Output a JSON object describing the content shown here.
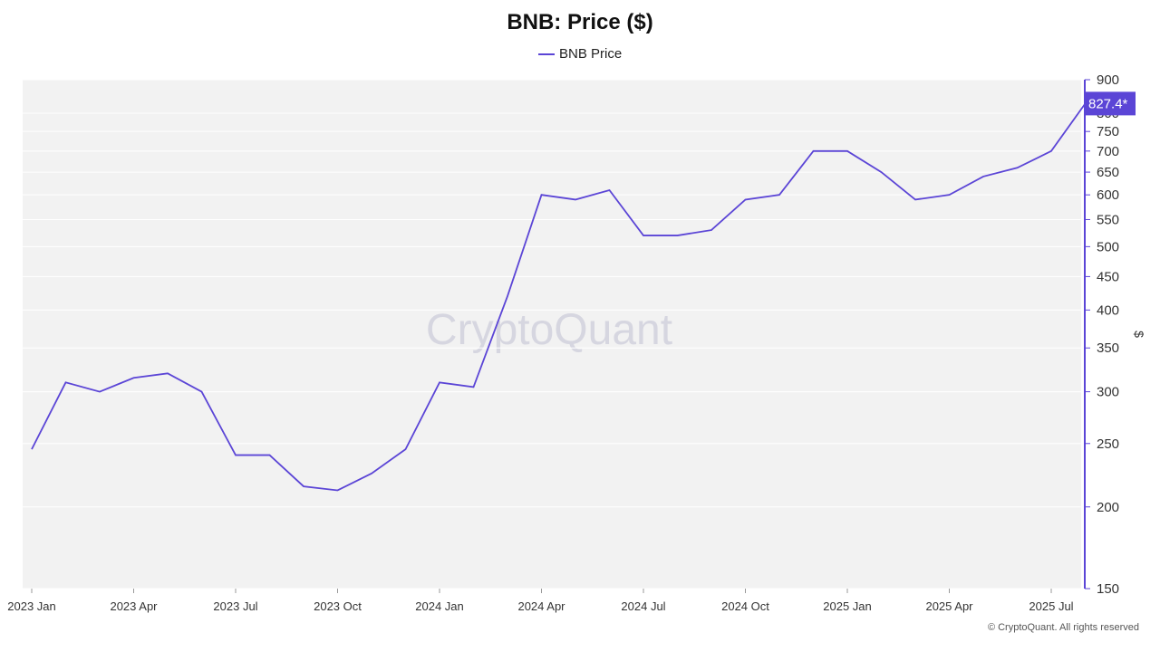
{
  "chart_data": {
    "type": "line",
    "title": "BNB: Price ($)",
    "y_label": "$",
    "watermark": "CryptoQuant",
    "footer": "© CryptoQuant. All rights reserved",
    "y_scale": "log",
    "y_axis_side": "right",
    "grid": true,
    "x": [
      "2023-01",
      "2023-02",
      "2023-03",
      "2023-04",
      "2023-05",
      "2023-06",
      "2023-07",
      "2023-08",
      "2023-09",
      "2023-10",
      "2023-11",
      "2023-12",
      "2024-01",
      "2024-02",
      "2024-03",
      "2024-04",
      "2024-05",
      "2024-06",
      "2024-07",
      "2024-08",
      "2024-09",
      "2024-10",
      "2024-11",
      "2024-12",
      "2025-01",
      "2025-02",
      "2025-03",
      "2025-04",
      "2025-05",
      "2025-06",
      "2025-07",
      "2025-08"
    ],
    "series": [
      {
        "name": "BNB Price",
        "color": "#5b45d6",
        "values": [
          245,
          310,
          300,
          315,
          320,
          300,
          240,
          240,
          215,
          212,
          225,
          245,
          310,
          305,
          420,
          600,
          590,
          610,
          520,
          520,
          530,
          590,
          600,
          700,
          700,
          650,
          590,
          600,
          640,
          660,
          700,
          827.4
        ],
        "value_labels": [
          null,
          null,
          null,
          null,
          null,
          null,
          null,
          null,
          null,
          null,
          null,
          null,
          null,
          null,
          null,
          null,
          null,
          null,
          null,
          null,
          null,
          null,
          null,
          null,
          null,
          null,
          null,
          null,
          null,
          null,
          null,
          "827.4*"
        ]
      }
    ],
    "xticks": [
      {
        "value": "2023-01",
        "label": "2023 Jan"
      },
      {
        "value": "2023-04",
        "label": "2023 Apr"
      },
      {
        "value": "2023-07",
        "label": "2023 Jul"
      },
      {
        "value": "2023-10",
        "label": "2023 Oct"
      },
      {
        "value": "2024-01",
        "label": "2024 Jan"
      },
      {
        "value": "2024-04",
        "label": "2024 Apr"
      },
      {
        "value": "2024-07",
        "label": "2024 Jul"
      },
      {
        "value": "2024-10",
        "label": "2024 Oct"
      },
      {
        "value": "2025-01",
        "label": "2025 Jan"
      },
      {
        "value": "2025-04",
        "label": "2025 Apr"
      },
      {
        "value": "2025-07",
        "label": "2025 Jul"
      }
    ],
    "ylim": [
      150,
      900
    ],
    "yticks": [
      150,
      200,
      250,
      300,
      350,
      400,
      450,
      500,
      550,
      600,
      650,
      700,
      750,
      800,
      900
    ]
  }
}
